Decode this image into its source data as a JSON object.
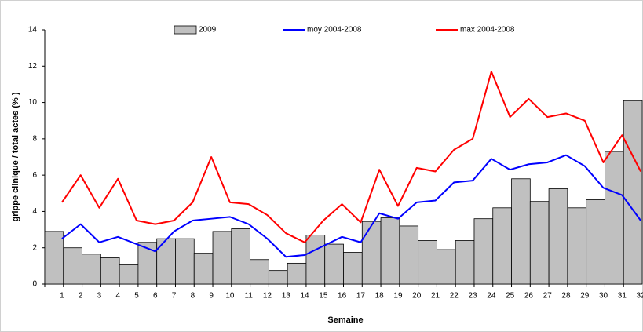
{
  "chart_data": {
    "type": "combo",
    "y_label": "grippe clinique / total actes (% )",
    "x_label": "Semaine",
    "categories": [
      "1",
      "2",
      "3",
      "4",
      "5",
      "6",
      "7",
      "8",
      "9",
      "10",
      "11",
      "12",
      "13",
      "14",
      "15",
      "16",
      "17",
      "18",
      "19",
      "20",
      "21",
      "22",
      "23",
      "24",
      "25",
      "26",
      "27",
      "28",
      "29",
      "30",
      "31",
      "32"
    ],
    "series": [
      {
        "name": "2009",
        "type": "bar",
        "color": "#c0c0c0",
        "values": [
          2.9,
          2.0,
          1.65,
          1.45,
          1.1,
          2.3,
          2.5,
          2.5,
          1.7,
          2.9,
          3.05,
          1.35,
          0.75,
          1.15,
          2.7,
          2.2,
          1.75,
          3.45,
          3.65,
          3.2,
          2.4,
          1.9,
          2.4,
          3.6,
          4.2,
          5.8,
          4.55,
          5.25,
          4.2,
          4.65,
          7.3,
          10.1
        ]
      },
      {
        "name": "moy 2004-2008",
        "type": "line",
        "color": "#0000ff",
        "values": [
          2.5,
          3.3,
          2.3,
          2.6,
          2.2,
          1.8,
          2.9,
          3.5,
          3.6,
          3.7,
          3.3,
          2.5,
          1.5,
          1.6,
          2.1,
          2.6,
          2.3,
          3.9,
          3.6,
          4.5,
          4.6,
          5.6,
          5.7,
          6.9,
          6.3,
          6.6,
          6.7,
          7.1,
          6.5,
          5.3,
          4.9,
          3.5
        ]
      },
      {
        "name": "max 2004-2008",
        "type": "line",
        "color": "#ff0000",
        "values": [
          4.5,
          6.0,
          4.2,
          5.8,
          3.5,
          3.3,
          3.5,
          4.5,
          7.0,
          4.5,
          4.4,
          3.8,
          2.8,
          2.3,
          3.5,
          4.4,
          3.4,
          6.3,
          4.3,
          6.4,
          6.2,
          7.4,
          8.0,
          11.7,
          9.2,
          10.2,
          9.2,
          9.4,
          9.0,
          6.7,
          8.2,
          6.2
        ]
      }
    ],
    "ylim": [
      0,
      14
    ],
    "yticks": [
      0,
      2,
      4,
      6,
      8,
      10,
      12,
      14
    ],
    "grid": false,
    "legend": "top"
  }
}
